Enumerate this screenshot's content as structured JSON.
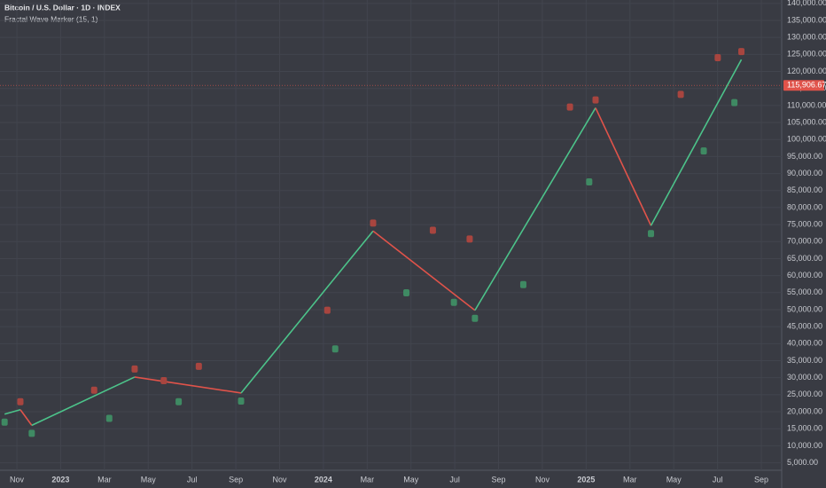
{
  "chart_data": {
    "type": "line",
    "title": "Bitcoin / U.S. Dollar · 1D · INDEX",
    "subtitle": "Fractal Wave Marker (15, 1)",
    "xlim": [
      -0.77,
      34.93
    ],
    "xticks": [
      {
        "value": 0,
        "label": "Nov"
      },
      {
        "value": 2,
        "label": "2023"
      },
      {
        "value": 4,
        "label": "Mar"
      },
      {
        "value": 6,
        "label": "May"
      },
      {
        "value": 8,
        "label": "Jul"
      },
      {
        "value": 10,
        "label": "Sep"
      },
      {
        "value": 12,
        "label": "Nov"
      },
      {
        "value": 14,
        "label": "2024"
      },
      {
        "value": 16,
        "label": "Mar"
      },
      {
        "value": 18,
        "label": "May"
      },
      {
        "value": 20,
        "label": "Jul"
      },
      {
        "value": 22,
        "label": "Sep"
      },
      {
        "value": 24,
        "label": "Nov"
      },
      {
        "value": 26,
        "label": "2025"
      },
      {
        "value": 28,
        "label": "Mar"
      },
      {
        "value": 30,
        "label": "May"
      },
      {
        "value": 32,
        "label": "Jul"
      },
      {
        "value": 34,
        "label": "Sep"
      }
    ],
    "ylim": [
      2800,
      141000
    ],
    "yticks": [
      {
        "value": 5000,
        "label": "5,000.00"
      },
      {
        "value": 10000,
        "label": "10,000.00"
      },
      {
        "value": 15000,
        "label": "15,000.00"
      },
      {
        "value": 20000,
        "label": "20,000.00"
      },
      {
        "value": 25000,
        "label": "25,000.00"
      },
      {
        "value": 30000,
        "label": "30,000.00"
      },
      {
        "value": 35000,
        "label": "35,000.00"
      },
      {
        "value": 40000,
        "label": "40,000.00"
      },
      {
        "value": 45000,
        "label": "45,000.00"
      },
      {
        "value": 50000,
        "label": "50,000.00"
      },
      {
        "value": 55000,
        "label": "55,000.00"
      },
      {
        "value": 60000,
        "label": "60,000.00"
      },
      {
        "value": 65000,
        "label": "65,000.00"
      },
      {
        "value": 70000,
        "label": "70,000.00"
      },
      {
        "value": 75000,
        "label": "75,000.00"
      },
      {
        "value": 80000,
        "label": "80,000.00"
      },
      {
        "value": 85000,
        "label": "85,000.00"
      },
      {
        "value": 90000,
        "label": "90,000.00"
      },
      {
        "value": 95000,
        "label": "95,000.00"
      },
      {
        "value": 100000,
        "label": "100,000.00"
      },
      {
        "value": 105000,
        "label": "105,000.00"
      },
      {
        "value": 110000,
        "label": "110,000.00"
      },
      {
        "value": 115000,
        "label": "115,000.00"
      },
      {
        "value": 120000,
        "label": "120,000.00"
      },
      {
        "value": 125000,
        "label": "125,000.00"
      },
      {
        "value": 130000,
        "label": "130,000.00"
      },
      {
        "value": 135000,
        "label": "135,000.00"
      },
      {
        "value": 140000,
        "label": "140,000.00"
      }
    ],
    "last_price": {
      "value": 115906.67,
      "label": "115,906.67"
    },
    "last_price_color": "#e0534a",
    "up_color": "#4cc38a",
    "down_color": "#e0534a",
    "high_color": "#a8453f",
    "low_color": "#3f8a63",
    "highs": {
      "x": [
        0.16,
        3.53,
        5.38,
        6.71,
        8.31,
        14.18,
        16.27,
        19.0,
        20.68,
        25.26,
        26.43,
        30.32,
        32.01,
        33.09
      ],
      "values": [
        20600,
        24000,
        30200,
        26800,
        31000,
        47500,
        73100,
        71000,
        68400,
        107200,
        109300,
        110900,
        121700,
        123500
      ]
    },
    "lows": {
      "x": [
        -0.56,
        0.68,
        4.22,
        7.39,
        10.24,
        14.54,
        17.79,
        19.96,
        20.92,
        23.13,
        26.14,
        28.96,
        31.37,
        32.77
      ],
      "values": [
        19300,
        16000,
        20400,
        25300,
        25500,
        40800,
        57300,
        54500,
        49800,
        59700,
        89900,
        74700,
        99000,
        113200
      ]
    },
    "swings": {
      "x": [
        -0.56,
        0.16,
        0.68,
        5.38,
        10.24,
        16.27,
        20.92,
        26.43,
        28.96,
        33.09
      ],
      "values": [
        19300,
        20600,
        16000,
        30200,
        25500,
        73100,
        49800,
        109300,
        74700,
        123500
      ]
    }
  }
}
